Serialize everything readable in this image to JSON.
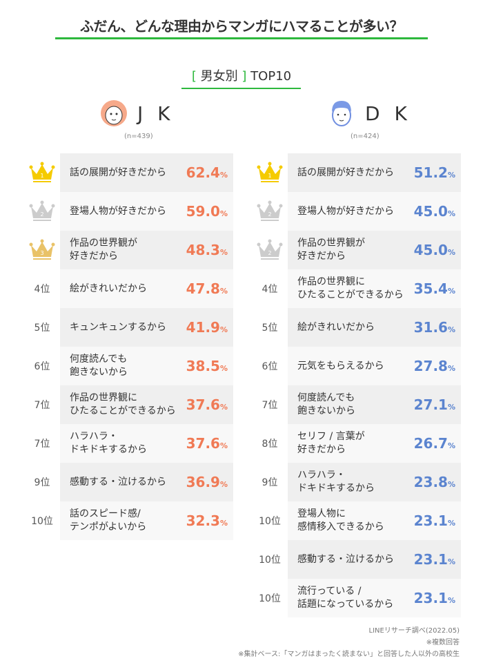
{
  "title": "ふだん、どんな理由からマンガにハマることが多い？",
  "subtitle": {
    "open": "[",
    "text": "男女別",
    "close": "]",
    "top": "TOP10"
  },
  "colors": {
    "accent": "#2db83d",
    "jk": "#f07a55",
    "dk": "#5b84cf",
    "gold": "#f5cb00",
    "silver": "#cccccc",
    "bronze": "#e9c267"
  },
  "jk": {
    "name": "J K",
    "n": "(n=439)",
    "icon": "girl-face-icon",
    "rows": [
      {
        "rank": "1",
        "crown": "gold",
        "label": "話の展開が好きだから",
        "value": "62.4",
        "unit": "%"
      },
      {
        "rank": "2",
        "crown": "silver",
        "label": "登場人物が好きだから",
        "value": "59.0",
        "unit": "%"
      },
      {
        "rank": "3",
        "crown": "bronze",
        "label": "作品の世界観が\n好きだから",
        "value": "48.3",
        "unit": "%"
      },
      {
        "rank": "4位",
        "label": "絵がきれいだから",
        "value": "47.8",
        "unit": "%"
      },
      {
        "rank": "5位",
        "label": "キュンキュンするから",
        "value": "41.9",
        "unit": "%"
      },
      {
        "rank": "6位",
        "label": "何度読んでも\n飽きないから",
        "value": "38.5",
        "unit": "%"
      },
      {
        "rank": "7位",
        "label": "作品の世界観に\nひたることができるから",
        "value": "37.6",
        "unit": "%"
      },
      {
        "rank": "7位",
        "label": "ハラハラ・\nドキドキするから",
        "value": "37.6",
        "unit": "%"
      },
      {
        "rank": "9位",
        "label": "感動する・泣けるから",
        "value": "36.9",
        "unit": "%"
      },
      {
        "rank": "10位",
        "label": "話のスピード感/\nテンポがよいから",
        "value": "32.3",
        "unit": "%"
      }
    ]
  },
  "dk": {
    "name": "D K",
    "n": "(n=424)",
    "icon": "boy-face-icon",
    "rows": [
      {
        "rank": "1",
        "crown": "gold",
        "label": "話の展開が好きだから",
        "value": "51.2",
        "unit": "%"
      },
      {
        "rank": "2",
        "crown": "silver",
        "label": "登場人物が好きだから",
        "value": "45.0",
        "unit": "%"
      },
      {
        "rank": "2",
        "crown": "silver",
        "label": "作品の世界観が\n好きだから",
        "value": "45.0",
        "unit": "%"
      },
      {
        "rank": "4位",
        "label": "作品の世界観に\nひたることができるから",
        "value": "35.4",
        "unit": "%"
      },
      {
        "rank": "5位",
        "label": "絵がきれいだから",
        "value": "31.6",
        "unit": "%"
      },
      {
        "rank": "6位",
        "label": "元気をもらえるから",
        "value": "27.8",
        "unit": "%"
      },
      {
        "rank": "7位",
        "label": "何度読んでも\n飽きないから",
        "value": "27.1",
        "unit": "%"
      },
      {
        "rank": "8位",
        "label": "セリフ / 言葉が\n好きだから",
        "value": "26.7",
        "unit": "%"
      },
      {
        "rank": "9位",
        "label": "ハラハラ・\nドキドキするから",
        "value": "23.8",
        "unit": "%"
      },
      {
        "rank": "10位",
        "label": "登場人物に\n感情移入できるから",
        "value": "23.1",
        "unit": "%"
      },
      {
        "rank": "10位",
        "label": "感動する・泣けるから",
        "value": "23.1",
        "unit": "%"
      },
      {
        "rank": "10位",
        "label": "流行っている /\n話題になっているから",
        "value": "23.1",
        "unit": "%"
      }
    ]
  },
  "notes": [
    "LINEリサーチ調べ(2022.05)",
    "※複数回答",
    "※集計ベース:「マンガはまったく読まない」と回答した人以外の高校生"
  ]
}
